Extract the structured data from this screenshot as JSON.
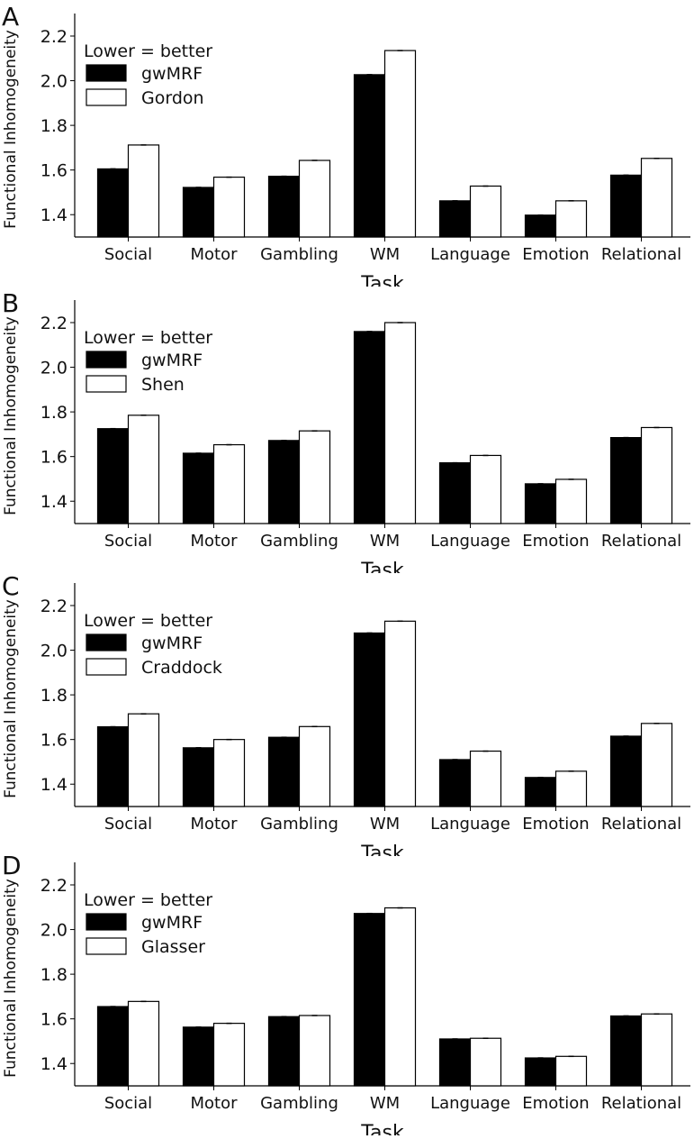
{
  "chart_data": [
    {
      "panel_label": "A",
      "type": "bar",
      "categories": [
        "Social",
        "Motor",
        "Gambling",
        "WM",
        "Language",
        "Emotion",
        "Relational"
      ],
      "series": [
        {
          "name": "gwMRF",
          "values": [
            1.605,
            1.522,
            1.572,
            2.027,
            1.462,
            1.398,
            1.577
          ],
          "fill": "#000000"
        },
        {
          "name": "Gordon",
          "values": [
            1.712,
            1.568,
            1.643,
            2.135,
            1.528,
            1.462,
            1.652
          ],
          "fill": "#ffffff"
        }
      ],
      "legend_title": "Lower = better",
      "xlabel": "Task",
      "ylabel": "Functional Inhomogeneity",
      "ylim": [
        1.3,
        2.2
      ],
      "yticks": [
        "1.4",
        "1.6",
        "1.8",
        "2.0",
        "2.2"
      ],
      "grid": false,
      "legend_position": "top-left"
    },
    {
      "panel_label": "B",
      "type": "bar",
      "categories": [
        "Social",
        "Motor",
        "Gambling",
        "WM",
        "Language",
        "Emotion",
        "Relational"
      ],
      "series": [
        {
          "name": "gwMRF",
          "values": [
            1.725,
            1.615,
            1.672,
            2.16,
            1.572,
            1.478,
            1.685
          ],
          "fill": "#000000"
        },
        {
          "name": "Shen",
          "values": [
            1.785,
            1.653,
            1.715,
            2.2,
            1.605,
            1.498,
            1.73
          ],
          "fill": "#ffffff"
        }
      ],
      "legend_title": "Lower = better",
      "xlabel": "Task",
      "ylabel": "Functional Inhomogeneity",
      "ylim": [
        1.3,
        2.2
      ],
      "yticks": [
        "1.4",
        "1.6",
        "1.8",
        "2.0",
        "2.2"
      ],
      "grid": false,
      "legend_position": "top-left"
    },
    {
      "panel_label": "C",
      "type": "bar",
      "categories": [
        "Social",
        "Motor",
        "Gambling",
        "WM",
        "Language",
        "Emotion",
        "Relational"
      ],
      "series": [
        {
          "name": "gwMRF",
          "values": [
            1.657,
            1.563,
            1.61,
            2.077,
            1.51,
            1.43,
            1.615
          ],
          "fill": "#000000"
        },
        {
          "name": "Craddock",
          "values": [
            1.715,
            1.6,
            1.658,
            2.13,
            1.548,
            1.458,
            1.672
          ],
          "fill": "#ffffff"
        }
      ],
      "legend_title": "Lower = better",
      "xlabel": "Task",
      "ylabel": "Functional Inhomogeneity",
      "ylim": [
        1.3,
        2.2
      ],
      "yticks": [
        "1.4",
        "1.6",
        "1.8",
        "2.0",
        "2.2"
      ],
      "grid": false,
      "legend_position": "top-left"
    },
    {
      "panel_label": "D",
      "type": "bar",
      "categories": [
        "Social",
        "Motor",
        "Gambling",
        "WM",
        "Language",
        "Emotion",
        "Relational"
      ],
      "series": [
        {
          "name": "gwMRF",
          "values": [
            1.655,
            1.563,
            1.61,
            2.072,
            1.51,
            1.425,
            1.613
          ],
          "fill": "#000000"
        },
        {
          "name": "Glasser",
          "values": [
            1.678,
            1.58,
            1.615,
            2.097,
            1.513,
            1.432,
            1.622
          ],
          "fill": "#ffffff"
        }
      ],
      "legend_title": "Lower = better",
      "xlabel": "Task",
      "ylabel": "Functional Inhomogeneity",
      "ylim": [
        1.3,
        2.2
      ],
      "yticks": [
        "1.4",
        "1.6",
        "1.8",
        "2.0",
        "2.2"
      ],
      "grid": false,
      "legend_position": "top-left"
    }
  ]
}
